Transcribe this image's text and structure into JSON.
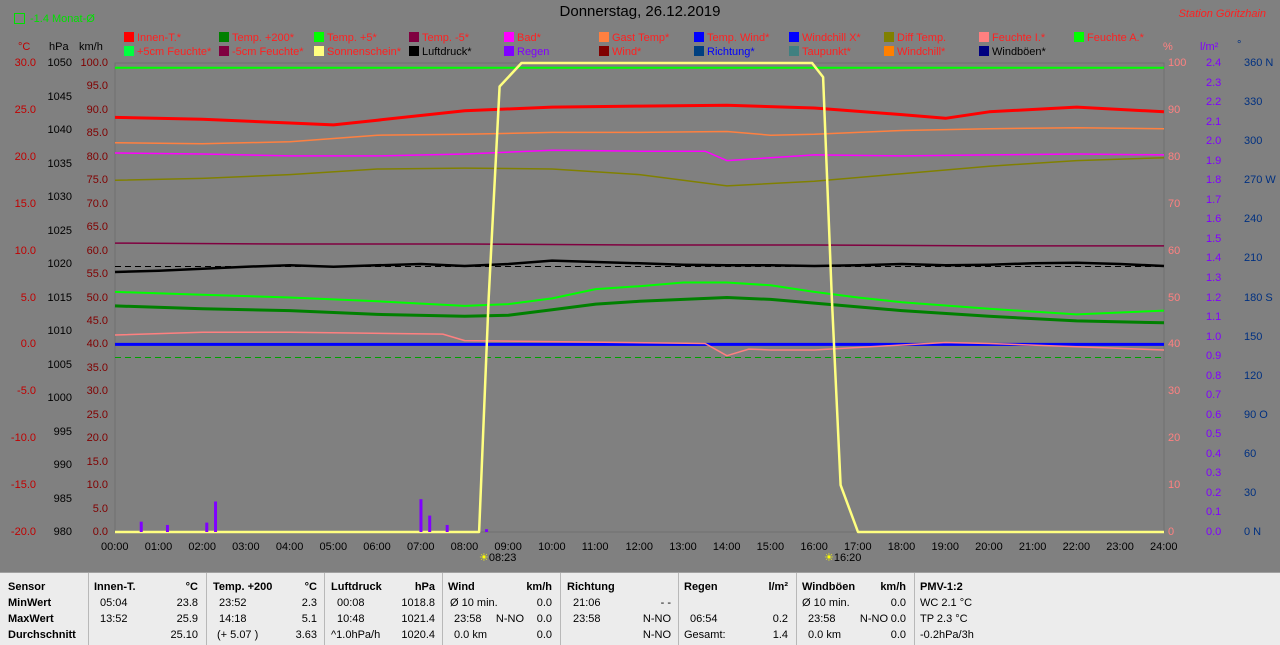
{
  "header": {
    "title": "Donnerstag, 26.12.2019",
    "station": "Station Göritzhain",
    "monthly_label": "-1.4 Monat-Ø"
  },
  "legend": {
    "row1": [
      {
        "label": "Innen-T.*",
        "color": "#ff0000",
        "text_color": "#ff2020"
      },
      {
        "label": "Temp. +200*",
        "color": "#008000",
        "text_color": "#ff2020"
      },
      {
        "label": "Temp. +5*",
        "color": "#00ff00",
        "text_color": "#ff2020"
      },
      {
        "label": "Temp. -5*",
        "color": "#800040",
        "text_color": "#ff2020"
      },
      {
        "label": "Bad*",
        "color": "#ff00ff",
        "text_color": "#ff2020"
      },
      {
        "label": "Gast Temp*",
        "color": "#ff8040",
        "text_color": "#ff2020"
      },
      {
        "label": "Temp. Wind*",
        "color": "#0000ff",
        "text_color": "#ff2020"
      },
      {
        "label": "Windchill X*",
        "color": "#0000ff",
        "text_color": "#ff2020"
      },
      {
        "label": "Diff Temp.",
        "color": "#808000",
        "text_color": "#ff2020"
      },
      {
        "label": "Feuchte I.*",
        "color": "#ff8080",
        "text_color": "#ff2020"
      },
      {
        "label": "Feuchte A.*",
        "color": "#00ff00",
        "text_color": "#ff2020"
      }
    ],
    "row2": [
      {
        "label": "+5cm Feuchte*",
        "color": "#00ff40",
        "text_color": "#ff2020"
      },
      {
        "label": "-5cm Feuchte*",
        "color": "#800040",
        "text_color": "#ff2020"
      },
      {
        "label": "Sonnenschein*",
        "color": "#ffff80",
        "text_color": "#ff2020"
      },
      {
        "label": "Luftdruck*",
        "color": "#000000",
        "text_color": "#000000"
      },
      {
        "label": "Regen",
        "color": "#8000ff",
        "text_color": "#8000ff"
      },
      {
        "label": "Wind*",
        "color": "#800000",
        "text_color": "#ff2020"
      },
      {
        "label": "Richtung*",
        "color": "#004080",
        "text_color": "#0000ff"
      },
      {
        "label": "Taupunkt*",
        "color": "#408080",
        "text_color": "#ff2020"
      },
      {
        "label": "Windchill*",
        "color": "#ff8000",
        "text_color": "#ff2020"
      },
      {
        "label": "Windböen*",
        "color": "#000080",
        "text_color": "#000000"
      }
    ]
  },
  "axes": {
    "temp_unit": "°C",
    "pressure_unit": "hPa",
    "wind_unit": "km/h",
    "percent_unit": "%",
    "rain_unit": "l/m²",
    "direction_unit": "°",
    "temp_ticks": [
      "30.0",
      "25.0",
      "20.0",
      "15.0",
      "10.0",
      "5.0",
      "0.0",
      "-5.0",
      "-10.0",
      "-15.0",
      "-20.0"
    ],
    "pressure_ticks": [
      "1050",
      "1045",
      "1040",
      "1035",
      "1030",
      "1025",
      "1020",
      "1015",
      "1010",
      "1005",
      "1000",
      "995",
      "990",
      "985",
      "980"
    ],
    "wind_ticks": [
      "100.0",
      "95.0",
      "90.0",
      "85.0",
      "80.0",
      "75.0",
      "70.0",
      "65.0",
      "60.0",
      "55.0",
      "50.0",
      "45.0",
      "40.0",
      "35.0",
      "30.0",
      "25.0",
      "20.0",
      "15.0",
      "10.0",
      "5.0",
      "0.0"
    ],
    "percent_ticks": [
      "100",
      "90",
      "80",
      "70",
      "60",
      "50",
      "40",
      "30",
      "20",
      "10",
      "0"
    ],
    "rain_ticks": [
      "2.4",
      "2.3",
      "2.2",
      "2.1",
      "2.0",
      "1.9",
      "1.8",
      "1.7",
      "1.6",
      "1.5",
      "1.4",
      "1.3",
      "1.2",
      "1.1",
      "1.0",
      "0.9",
      "0.8",
      "0.7",
      "0.6",
      "0.5",
      "0.4",
      "0.3",
      "0.2",
      "0.1",
      "0.0"
    ],
    "direction_ticks": [
      "360 N",
      "330",
      "300",
      "270 W",
      "240",
      "210",
      "180 S",
      "150",
      "120",
      "90 O",
      "60",
      "30",
      "0 N"
    ],
    "time_ticks": [
      "00:00",
      "01:00",
      "02:00",
      "03:00",
      "04:00",
      "05:00",
      "06:00",
      "07:00",
      "08:00",
      "09:00",
      "10:00",
      "11:00",
      "12:00",
      "13:00",
      "14:00",
      "15:00",
      "16:00",
      "17:00",
      "18:00",
      "19:00",
      "20:00",
      "21:00",
      "22:00",
      "23:00",
      "24:00"
    ],
    "sunrise": "08:23",
    "sunset": "16:20"
  },
  "chart_data": {
    "type": "line",
    "x_unit": "hours",
    "xlim": [
      0,
      24
    ],
    "temp_axis_ylim": [
      -20,
      30
    ],
    "pressure_axis_ylim": [
      980,
      1050
    ],
    "wind_axis_ylim": [
      0,
      100
    ],
    "series": [
      {
        "name": "Innen-T.*",
        "axis": "temp",
        "color": "#ff0000",
        "x": [
          0,
          2,
          4,
          5,
          6,
          8,
          10,
          12,
          14,
          16,
          18,
          19,
          20,
          22,
          24
        ],
        "values": [
          24.2,
          24.0,
          23.6,
          23.4,
          23.9,
          24.9,
          25.3,
          25.4,
          25.5,
          25.2,
          24.5,
          24.1,
          24.8,
          25.3,
          24.8
        ]
      },
      {
        "name": "Temp. +200*",
        "axis": "temp",
        "color": "#008000",
        "x": [
          0,
          2,
          4,
          6,
          8,
          9,
          10,
          11,
          12,
          13,
          14,
          15,
          16,
          17,
          18,
          20,
          22,
          24
        ],
        "values": [
          4.1,
          3.8,
          3.6,
          3.2,
          3.0,
          3.1,
          3.7,
          4.3,
          4.6,
          4.8,
          5.0,
          4.8,
          4.4,
          4.0,
          3.6,
          3.0,
          2.5,
          2.3
        ]
      },
      {
        "name": "Temp. +5*",
        "axis": "temp",
        "color": "#00ff00",
        "x": [
          0,
          2,
          4,
          6,
          8,
          9,
          10,
          11,
          12,
          13,
          14,
          15,
          16,
          17,
          18,
          20,
          22,
          24
        ],
        "values": [
          5.6,
          5.3,
          5.0,
          4.6,
          4.1,
          4.3,
          4.9,
          5.9,
          6.2,
          6.6,
          6.6,
          6.3,
          5.6,
          5.0,
          4.5,
          3.8,
          3.2,
          3.6
        ]
      },
      {
        "name": "Temp. -5*",
        "axis": "temp",
        "color": "#800040",
        "x": [
          0,
          4,
          8,
          12,
          16,
          20,
          24
        ],
        "values": [
          10.8,
          10.7,
          10.7,
          10.6,
          10.6,
          10.5,
          10.5
        ]
      },
      {
        "name": "Bad*",
        "axis": "temp",
        "color": "#ff00ff",
        "x": [
          0,
          2,
          4,
          6,
          8,
          10,
          12,
          13.5,
          14,
          15,
          16,
          18,
          20,
          22,
          24
        ],
        "values": [
          20.4,
          20.3,
          20.1,
          20.1,
          20.3,
          20.7,
          20.6,
          20.6,
          19.6,
          19.9,
          20.2,
          20.1,
          20.2,
          20.3,
          20.2
        ]
      },
      {
        "name": "Gast Temp*",
        "axis": "temp",
        "color": "#ff8040",
        "x": [
          0,
          2,
          4,
          6,
          8,
          10,
          12,
          14,
          15,
          16,
          18,
          20,
          22,
          24
        ],
        "values": [
          21.5,
          21.4,
          21.6,
          22.3,
          22.4,
          22.6,
          22.6,
          22.7,
          22.3,
          22.4,
          22.8,
          23.0,
          23.1,
          23.0
        ]
      },
      {
        "name": "Temp. Wind*",
        "axis": "temp",
        "color": "#0000ff",
        "x": [
          0,
          24
        ],
        "values": [
          0.0,
          0.0
        ]
      },
      {
        "name": "Diff Temp.",
        "axis": "temp",
        "color": "#808000",
        "x": [
          0,
          2,
          4,
          6,
          8,
          10,
          12,
          14,
          16,
          18,
          20,
          22,
          24
        ],
        "values": [
          17.5,
          17.7,
          18.1,
          18.7,
          18.8,
          18.7,
          18.1,
          16.9,
          17.4,
          18.2,
          19.0,
          19.6,
          19.9
        ]
      },
      {
        "name": "Feuchte I.*",
        "axis": "temp",
        "color": "#ff8080",
        "x": [
          0,
          2,
          4,
          7.5,
          8,
          13.5,
          14,
          14.5,
          15,
          16,
          19,
          20,
          24
        ],
        "values": [
          1.0,
          1.3,
          1.3,
          1.1,
          0.4,
          0.1,
          -1.2,
          -0.5,
          -0.6,
          -0.6,
          0.2,
          0.1,
          -0.6
        ]
      },
      {
        "name": "Feuchte A.*",
        "axis": "temp",
        "color": "#00ff00",
        "x": [
          0,
          24
        ],
        "values": [
          29.5,
          29.5
        ]
      },
      {
        "name": "Luftdruck*",
        "axis": "pressure",
        "color": "#000000",
        "x": [
          0,
          1,
          2,
          3,
          4,
          5,
          6,
          7,
          8,
          9,
          10,
          11,
          12,
          13,
          14,
          15,
          16,
          17,
          18,
          19,
          20,
          21,
          22,
          23,
          24
        ],
        "values": [
          1018.8,
          1019.0,
          1019.3,
          1019.6,
          1019.8,
          1019.6,
          1019.8,
          1020.0,
          1019.7,
          1020.0,
          1020.5,
          1020.3,
          1020.1,
          1019.9,
          1019.8,
          1019.8,
          1019.7,
          1019.8,
          1020.0,
          1019.8,
          1019.9,
          1020.1,
          1020.2,
          1020.0,
          1019.7
        ]
      },
      {
        "name": "Sonnenschein*",
        "axis": "wind",
        "color": "#ffff80",
        "x": [
          0,
          8.33,
          8.55,
          8.8,
          9.3,
          15.95,
          16.2,
          16.4,
          16.6,
          17.0,
          24
        ],
        "values": [
          0,
          0,
          50,
          95,
          100,
          100,
          97,
          50,
          10,
          0,
          0
        ]
      },
      {
        "name": "Regen",
        "axis": "wind",
        "color": "#8000ff",
        "x": [
          0.6,
          1.2,
          2.1,
          2.3,
          7.0,
          7.2,
          7.6,
          8.5
        ],
        "values": [
          2.2,
          1.5,
          2.0,
          6.5,
          7.0,
          3.5,
          1.5,
          0.6
        ]
      }
    ]
  },
  "stats": {
    "sensor": {
      "label": "Sensor",
      "rows": [
        "MinWert",
        "MaxWert",
        "Durchschnitt"
      ]
    },
    "innen": {
      "label": "Innen-T.",
      "unit": "°C",
      "rows": [
        {
          "time": "05:04",
          "val": "23.8"
        },
        {
          "time": "13:52",
          "val": "25.9"
        },
        {
          "time": "",
          "val": "25.10"
        }
      ]
    },
    "temp200": {
      "label": "Temp. +200",
      "unit": "°C",
      "rows": [
        {
          "time": "23:52",
          "val": "2.3"
        },
        {
          "time": "14:18",
          "val": "5.1"
        },
        {
          "time": "(+ 5.07 )",
          "val": "3.63"
        }
      ]
    },
    "luftdruck": {
      "label": "Luftdruck",
      "unit": "hPa",
      "rows": [
        {
          "time": "00:08",
          "val": "1018.8"
        },
        {
          "time": "10:48",
          "val": "1021.4"
        },
        {
          "time": "^1.0hPa/h",
          "val": "1020.4"
        }
      ]
    },
    "wind": {
      "label": "Wind",
      "unit": "km/h",
      "rows": [
        {
          "time": "Ø 10 min.",
          "val": "0.0"
        },
        {
          "time": "23:58",
          "extra": "N-NO",
          "val": "0.0"
        },
        {
          "time": "0.0 km",
          "val": "0.0"
        }
      ]
    },
    "richtung": {
      "label": "Richtung",
      "unit": "",
      "rows": [
        {
          "time": "21:06",
          "val": "- -"
        },
        {
          "time": "23:58",
          "val": "N-NO"
        },
        {
          "time": "",
          "val": "N-NO"
        }
      ]
    },
    "regen": {
      "label": "Regen",
      "unit": "l/m²",
      "rows": [
        {
          "time": "",
          "val": ""
        },
        {
          "time": "06:54",
          "val": "0.2"
        },
        {
          "time": "Gesamt:",
          "val": "1.4"
        }
      ]
    },
    "windboeen": {
      "label": "Windböen",
      "unit": "km/h",
      "rows": [
        {
          "time": "Ø 10 min.",
          "val": "0.0"
        },
        {
          "time": "23:58",
          "extra": "N-NO",
          "val": "0.0"
        },
        {
          "time": "0.0 km",
          "val": "0.0"
        }
      ]
    },
    "pmv": {
      "label": "PMV-1:2",
      "rows": [
        "WC 2.1 °C",
        "TP 2.3 °C",
        "-0.2hPa/3h"
      ]
    }
  }
}
